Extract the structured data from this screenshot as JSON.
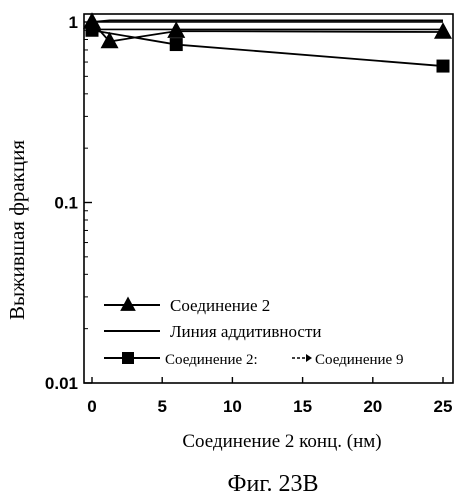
{
  "chart_data": {
    "type": "line",
    "ylabel": "Выжившая фракция",
    "xlabel": "Соединение 2 конц. (нм)",
    "caption": "Фиг. 23B",
    "x_ticks": [
      0,
      5,
      10,
      15,
      20,
      25
    ],
    "y_ticks": [
      {
        "value": 1,
        "label": "1"
      },
      {
        "value": 0.1,
        "label": "0.1"
      },
      {
        "value": 0.01,
        "label": "0.01"
      }
    ],
    "xlim": [
      -0.5,
      25.5
    ],
    "ylim": [
      0.01,
      1.12
    ],
    "y_scale": "log",
    "grid": false,
    "legend_position": "bottom-left",
    "series": [
      {
        "name": "Соединение 2",
        "marker": "triangle",
        "x": [
          0,
          1.25,
          6,
          25
        ],
        "y": [
          1.0,
          0.78,
          0.89,
          0.88
        ]
      },
      {
        "name": "Линия аддитивности",
        "marker": "none",
        "x": [
          0,
          1.25,
          6,
          25
        ],
        "y": [
          1.0,
          1.02,
          1.02,
          1.02
        ]
      },
      {
        "name": "Соединение 2: --> Соединение 9",
        "marker": "square",
        "x": [
          0,
          6,
          25
        ],
        "y": [
          0.9,
          0.75,
          0.57
        ]
      }
    ],
    "extra_lines": [
      {
        "x": [
          0,
          6,
          25
        ],
        "y": [
          0.91,
          0.91,
          0.91
        ]
      },
      {
        "x": [
          0,
          25
        ],
        "y": [
          1.0,
          1.0
        ]
      }
    ],
    "legend": [
      {
        "label": "Соединение 2",
        "marker": "triangle"
      },
      {
        "label": "Линия аддитивности",
        "marker": "none"
      },
      {
        "label": "Соединение 2:",
        "marker": "square",
        "label2": "Соединение 9"
      }
    ]
  }
}
